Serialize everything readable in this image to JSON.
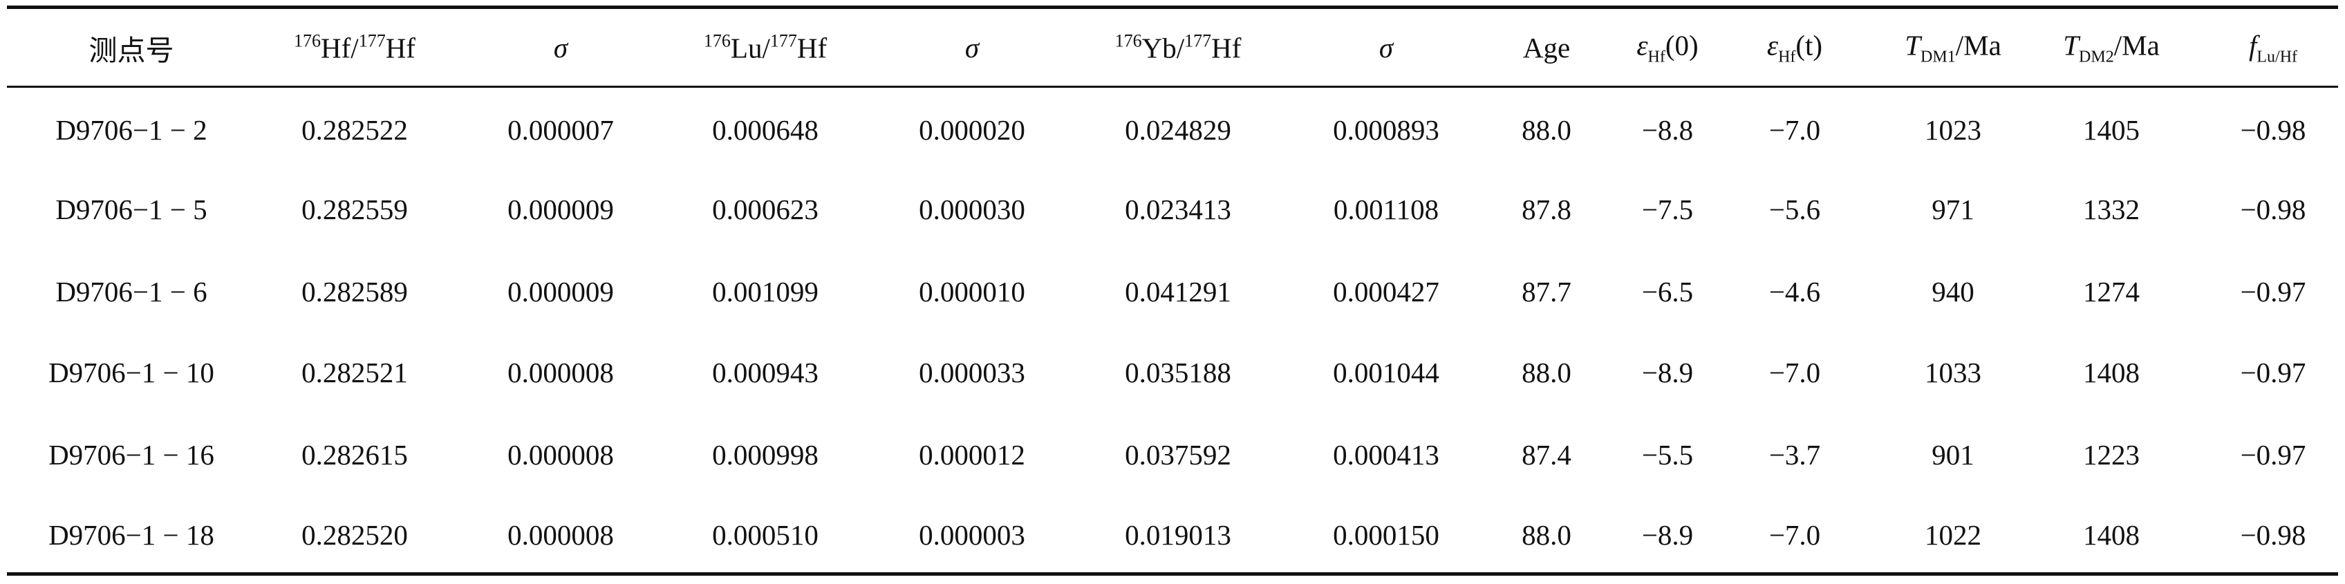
{
  "table": {
    "header": [
      [
        {
          "t": "测点号"
        }
      ],
      [
        {
          "t": "176",
          "s": "sup"
        },
        {
          "t": "Hf/"
        },
        {
          "t": "177",
          "s": "sup"
        },
        {
          "t": "Hf"
        }
      ],
      [
        {
          "t": "σ",
          "s": "i"
        }
      ],
      [
        {
          "t": "176",
          "s": "sup"
        },
        {
          "t": "Lu/"
        },
        {
          "t": "177",
          "s": "sup"
        },
        {
          "t": "Hf"
        }
      ],
      [
        {
          "t": "σ",
          "s": "i"
        }
      ],
      [
        {
          "t": "176",
          "s": "sup"
        },
        {
          "t": "Yb/"
        },
        {
          "t": "177",
          "s": "sup"
        },
        {
          "t": "Hf"
        }
      ],
      [
        {
          "t": "σ",
          "s": "i"
        }
      ],
      [
        {
          "t": "Age"
        }
      ],
      [
        {
          "t": "ε",
          "s": "i"
        },
        {
          "t": "Hf",
          "s": "sub"
        },
        {
          "t": "(0)"
        }
      ],
      [
        {
          "t": "ε",
          "s": "i"
        },
        {
          "t": "Hf",
          "s": "sub"
        },
        {
          "t": "(t)"
        }
      ],
      [
        {
          "t": "T",
          "s": "i"
        },
        {
          "t": "DM1",
          "s": "sub"
        },
        {
          "t": "/Ma"
        }
      ],
      [
        {
          "t": "T",
          "s": "i"
        },
        {
          "t": "DM2",
          "s": "sub"
        },
        {
          "t": "/Ma"
        }
      ],
      [
        {
          "t": "f",
          "s": "i"
        },
        {
          "t": "Lu/Hf",
          "s": "sub"
        }
      ]
    ],
    "rows": [
      [
        "D9706−1 − 2",
        "0.282522",
        "0.000007",
        "0.000648",
        "0.000020",
        "0.024829",
        "0.000893",
        "88.0",
        "−8.8",
        "−7.0",
        "1023",
        "1405",
        "−0.98"
      ],
      [
        "D9706−1 − 5",
        "0.282559",
        "0.000009",
        "0.000623",
        "0.000030",
        "0.023413",
        "0.001108",
        "87.8",
        "−7.5",
        "−5.6",
        "971",
        "1332",
        "−0.98"
      ],
      [
        "D9706−1 − 6",
        "0.282589",
        "0.000009",
        "0.001099",
        "0.000010",
        "0.041291",
        "0.000427",
        "87.7",
        "−6.5",
        "−4.6",
        "940",
        "1274",
        "−0.97"
      ],
      [
        "D9706−1 − 10",
        "0.282521",
        "0.000008",
        "0.000943",
        "0.000033",
        "0.035188",
        "0.001044",
        "88.0",
        "−8.9",
        "−7.0",
        "1033",
        "1408",
        "−0.97"
      ],
      [
        "D9706−1 − 16",
        "0.282615",
        "0.000008",
        "0.000998",
        "0.000012",
        "0.037592",
        "0.000413",
        "87.4",
        "−5.5",
        "−3.7",
        "901",
        "1223",
        "−0.97"
      ],
      [
        "D9706−1 − 18",
        "0.282520",
        "0.000008",
        "0.000510",
        "0.000003",
        "0.019013",
        "0.000150",
        "88.0",
        "−8.9",
        "−7.0",
        "1022",
        "1408",
        "−0.98"
      ]
    ]
  }
}
